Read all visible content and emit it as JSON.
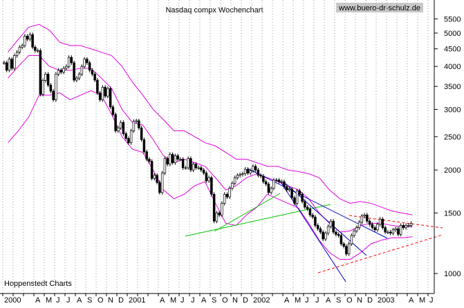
{
  "chart_data": {
    "type": "candlestick",
    "title": "Nasdaq compx Wochenchart",
    "watermark": "www.buero-dr-schulz.de",
    "source": "Hoppenstedt Charts",
    "log_y": true,
    "grid": true,
    "ylim": [
      875,
      6240
    ],
    "yticks": [
      1000,
      1500,
      2000,
      2500,
      3000,
      3500,
      4000,
      4500,
      5000,
      5500
    ],
    "months": [
      "2000",
      null,
      null,
      "A",
      "M",
      "J",
      "J",
      "A",
      "S",
      "O",
      "N",
      "D",
      "2001",
      null,
      null,
      "A",
      "M",
      "J",
      "J",
      "A",
      "S",
      "O",
      "N",
      "D",
      "2002",
      null,
      null,
      "A",
      "M",
      "J",
      "J",
      "A",
      "S",
      "O",
      "N",
      "D",
      "2003",
      null,
      null,
      "A",
      "M",
      "J"
    ],
    "weekly_close": [
      4100,
      3900,
      4200,
      3950,
      4300,
      4400,
      4550,
      4600,
      4900,
      4800,
      4950,
      4550,
      4450,
      4450,
      3320,
      3640,
      3800,
      3530,
      3390,
      3200,
      3800,
      3900,
      3850,
      3950,
      4000,
      4250,
      4100,
      3650,
      3700,
      3800,
      4000,
      4200,
      4100,
      3900,
      3800,
      3650,
      3350,
      3200,
      3480,
      3280,
      3450,
      3050,
      2900,
      2600,
      2650,
      2750,
      2550,
      2470,
      2400,
      2600,
      2770,
      2780,
      2650,
      2450,
      2260,
      2150,
      2120,
      1890,
      1930,
      1840,
      1720,
      1960,
      2160,
      2080,
      2220,
      2100,
      2200,
      2150,
      2150,
      2030,
      2030,
      2160,
      2000,
      2080,
      2030,
      2030,
      2000,
      1960,
      1860,
      1900,
      1700,
      1420,
      1500,
      1480,
      1600,
      1700,
      1670,
      1770,
      1830,
      1900,
      1930,
      1940,
      1950,
      2010,
      1960,
      1990,
      2050,
      2000,
      1930,
      1920,
      1850,
      1820,
      1720,
      1770,
      1870,
      1870,
      1850,
      1850,
      1790,
      1750,
      1760,
      1660,
      1600,
      1740,
      1700,
      1620,
      1560,
      1540,
      1480,
      1460,
      1380,
      1350,
      1320,
      1260,
      1310,
      1370,
      1420,
      1320,
      1300,
      1290,
      1220,
      1200,
      1140,
      1220,
      1290,
      1330,
      1360,
      1410,
      1470,
      1480,
      1420,
      1390,
      1360,
      1340,
      1390,
      1440,
      1360,
      1320,
      1320,
      1310,
      1340,
      1350,
      1300,
      1380,
      1360,
      1380,
      1380,
      1400
    ],
    "bands": [
      {
        "color": "#e000e0",
        "values": [
          4400,
          4800,
          5200,
          5300,
          5100,
          4700,
          4600,
          4600,
          4500,
          4400,
          4300,
          4000,
          3600,
          3300,
          3000,
          2800,
          2600,
          2600,
          2500,
          2400,
          2350,
          2250,
          2150,
          2150,
          2100,
          2050,
          2050,
          2000,
          1980,
          1950,
          1900,
          1750,
          1650,
          1600,
          1620,
          1600,
          1560,
          1520,
          1500,
          1480
        ]
      },
      {
        "color": "#e000e0",
        "values": [
          3700,
          4000,
          4300,
          4300,
          4000,
          3900,
          3900,
          3950,
          3950,
          3700,
          3450,
          3000,
          2750,
          2700,
          2450,
          2200,
          2100,
          2150,
          2100,
          2050,
          1900,
          1750,
          1800,
          1900,
          1950,
          1900,
          1850,
          1800,
          1750,
          1650,
          1500,
          1400,
          1320,
          1330,
          1380,
          1400,
          1400,
          1380,
          1370,
          1370
        ]
      },
      {
        "color": "#e000e0",
        "values": [
          2400,
          2600,
          2850,
          3300,
          3300,
          3350,
          3200,
          3300,
          3400,
          3300,
          2900,
          2500,
          2300,
          2250,
          2000,
          1750,
          1650,
          1700,
          1800,
          1850,
          1600,
          1400,
          1380,
          1480,
          1560,
          1700,
          1650,
          1600,
          1550,
          1400,
          1250,
          1150,
          1100,
          1100,
          1150,
          1220,
          1250,
          1270,
          1270,
          1280
        ]
      }
    ]
  }
}
